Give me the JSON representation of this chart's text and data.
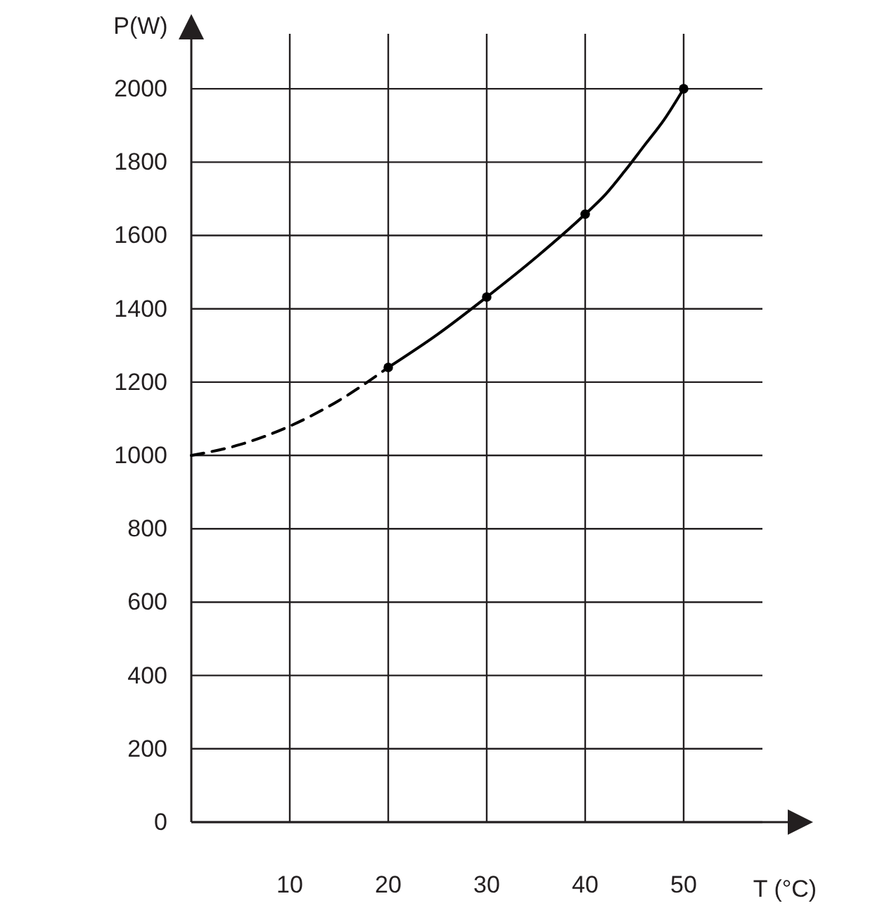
{
  "chart_data": {
    "type": "line",
    "xlabel": "T (°C)",
    "ylabel": "P(W)",
    "xlim": [
      0,
      58
    ],
    "ylim": [
      0,
      2150
    ],
    "xticks": [
      10,
      20,
      30,
      40,
      50
    ],
    "yticks": [
      0,
      200,
      400,
      600,
      800,
      1000,
      1200,
      1400,
      1600,
      1800,
      2000
    ],
    "grid": true,
    "series": [
      {
        "color": "#000000",
        "line_style": "dashed",
        "marker": "none",
        "x": [
          0,
          5,
          10,
          15,
          20
        ],
        "values": [
          1000,
          1030,
          1080,
          1150,
          1240
        ]
      },
      {
        "color": "#000000",
        "line_style": "solid",
        "marker": "none",
        "x": [
          20,
          25,
          30,
          35,
          40,
          42,
          44,
          46,
          48,
          50
        ],
        "values": [
          1240,
          1330,
          1432,
          1540,
          1658,
          1710,
          1775,
          1845,
          1915,
          2000
        ]
      },
      {
        "type": "scatter",
        "color": "#000000",
        "marker": "circle",
        "x": [
          20,
          30,
          40,
          50
        ],
        "values": [
          1240,
          1432,
          1658,
          2000
        ]
      }
    ]
  }
}
